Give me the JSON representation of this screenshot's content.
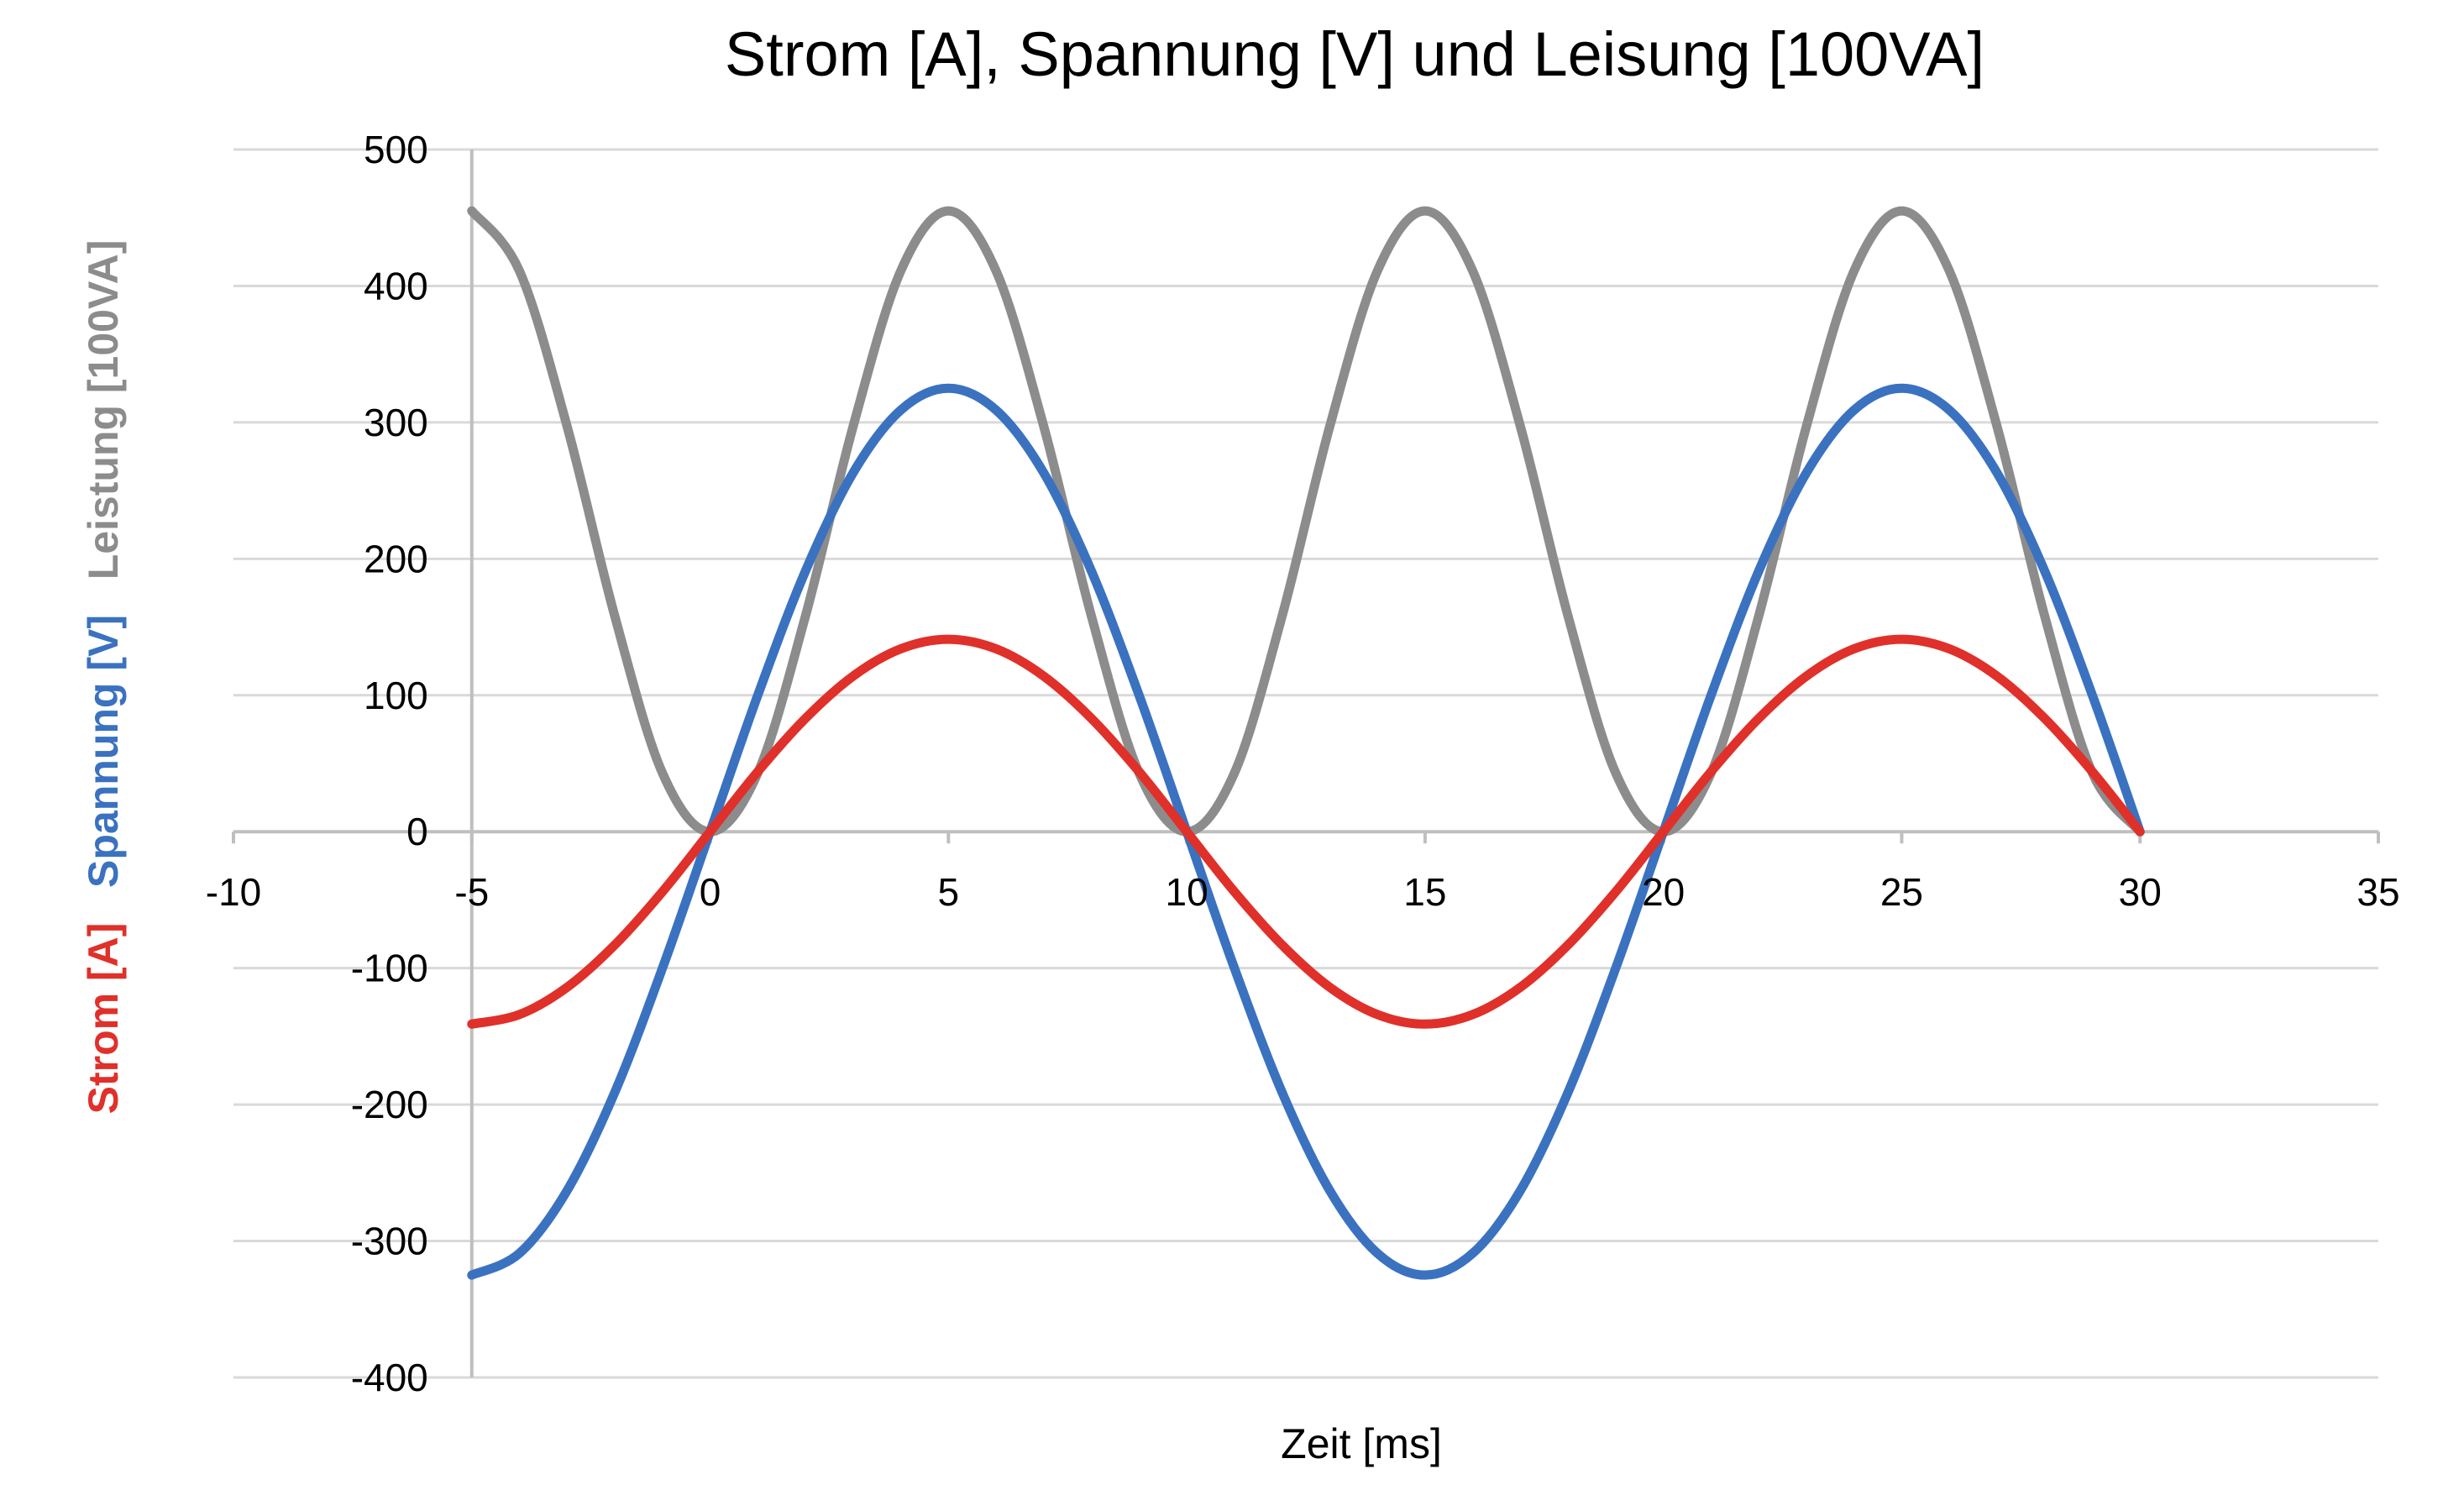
{
  "chart_data": {
    "type": "line",
    "title": "Strom [A], Spannung [V] und Leisung [100VA]",
    "xlabel": "Zeit [ms]",
    "ylabel_parts": [
      {
        "text": "Strom [A]",
        "color": "#e0302a"
      },
      {
        "text": "Spannung [V]",
        "color": "#3a72c0"
      },
      {
        "text": "Leistung [100VA]",
        "color": "#8c8c8c"
      }
    ],
    "xlim": [
      -10,
      35
    ],
    "ylim": [
      -400,
      500
    ],
    "x_ticks": [
      -10,
      -5,
      0,
      5,
      10,
      15,
      20,
      25,
      30,
      35
    ],
    "y_ticks": [
      500,
      400,
      300,
      200,
      100,
      0,
      -100,
      -200,
      -300,
      -400
    ],
    "x_tick_labels": [
      "-10",
      "-5",
      "0",
      "5",
      "10",
      "15",
      "20",
      "25",
      "30",
      "35"
    ],
    "y_tick_labels": [
      "500",
      "400",
      "300",
      "200",
      "100",
      "0",
      "-100",
      "-200",
      "-300",
      "-400"
    ],
    "grid": true,
    "legend": "none",
    "series": [
      {
        "color": "#8c8c8c",
        "x": [
          -5,
          -4,
          -3,
          -2,
          -1,
          0,
          1,
          2,
          3,
          4,
          5,
          6,
          7,
          8,
          9,
          10,
          11,
          12,
          13,
          14,
          15,
          16,
          17,
          18,
          19,
          20,
          21,
          22,
          23,
          24,
          25,
          26,
          27,
          28,
          29,
          30
        ],
        "y": [
          455,
          411,
          297,
          158,
          43,
          0,
          43,
          158,
          297,
          411,
          455,
          411,
          297,
          158,
          43,
          0,
          43,
          158,
          297,
          411,
          455,
          411,
          297,
          158,
          43,
          0,
          43,
          158,
          297,
          411,
          455,
          411,
          297,
          158,
          43,
          0
        ]
      },
      {
        "color": "#3a72c0",
        "x": [
          -5,
          -4,
          -3,
          -2,
          -1,
          0,
          1,
          2,
          3,
          4,
          5,
          6,
          7,
          8,
          9,
          10,
          11,
          12,
          13,
          14,
          15,
          16,
          17,
          18,
          19,
          20,
          21,
          22,
          23,
          24,
          25,
          26,
          27,
          28,
          29,
          30
        ],
        "y": [
          -325,
          -309,
          -263,
          -191,
          -100,
          0,
          100,
          191,
          263,
          309,
          325,
          309,
          263,
          191,
          100,
          0,
          -100,
          -191,
          -263,
          -309,
          -325,
          -309,
          -263,
          -191,
          -100,
          0,
          100,
          191,
          263,
          309,
          325,
          309,
          263,
          191,
          100,
          0
        ]
      },
      {
        "color": "#e0302a",
        "x": [
          -5,
          -4,
          -3,
          -2,
          -1,
          0,
          1,
          2,
          3,
          4,
          5,
          6,
          7,
          8,
          9,
          10,
          11,
          12,
          13,
          14,
          15,
          16,
          17,
          18,
          19,
          20,
          21,
          22,
          23,
          24,
          25,
          26,
          27,
          28,
          29,
          30
        ],
        "y": [
          -141,
          -134,
          -114,
          -83,
          -44,
          0,
          44,
          83,
          114,
          134,
          141,
          134,
          114,
          83,
          44,
          0,
          -44,
          -83,
          -114,
          -134,
          -141,
          -134,
          -114,
          -83,
          -44,
          0,
          44,
          83,
          114,
          134,
          141,
          134,
          114,
          83,
          44,
          0
        ]
      }
    ]
  }
}
